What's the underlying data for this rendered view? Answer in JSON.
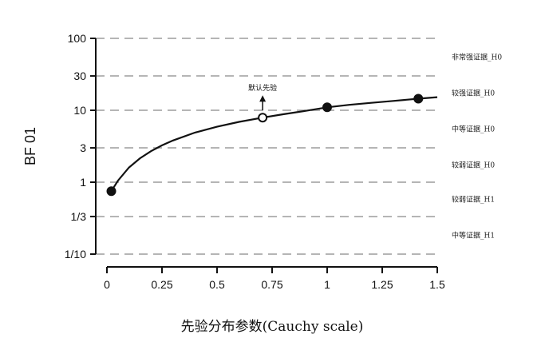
{
  "chart_data": {
    "type": "line",
    "ylabel": "BF 01",
    "xlabel": "先验分布参数(Cauchy scale)",
    "y_scale": "log",
    "xlim": [
      0,
      1.5
    ],
    "ylim": [
      0.1,
      100
    ],
    "x_ticks": [
      {
        "value": 0,
        "label": "0"
      },
      {
        "value": 0.25,
        "label": "0.25"
      },
      {
        "value": 0.5,
        "label": "0.5"
      },
      {
        "value": 0.75,
        "label": "0.75"
      },
      {
        "value": 1,
        "label": "1"
      },
      {
        "value": 1.25,
        "label": "1.25"
      },
      {
        "value": 1.5,
        "label": "1.5"
      }
    ],
    "y_ticks": [
      {
        "value": 0.1,
        "label": "1/10"
      },
      {
        "value": 0.3333,
        "label": "1/3"
      },
      {
        "value": 1,
        "label": "1"
      },
      {
        "value": 3,
        "label": "3"
      },
      {
        "value": 10,
        "label": "10"
      },
      {
        "value": 30,
        "label": "30"
      },
      {
        "value": 100,
        "label": "100"
      }
    ],
    "grid": "horizontal dashed at y ticks",
    "curve": {
      "x": [
        0.02,
        0.05,
        0.1,
        0.15,
        0.2,
        0.25,
        0.3,
        0.4,
        0.5,
        0.6,
        0.707,
        0.8,
        0.9,
        1.0,
        1.1,
        1.2,
        1.3,
        1.414,
        1.5
      ],
      "y": [
        0.75,
        1.05,
        1.6,
        2.15,
        2.7,
        3.25,
        3.8,
        4.9,
        5.9,
        6.9,
        7.9,
        8.8,
        9.8,
        11.0,
        11.9,
        12.7,
        13.5,
        14.5,
        15.2
      ]
    },
    "points": [
      {
        "x": 0.02,
        "y": 0.75,
        "style": "filled"
      },
      {
        "x": 0.707,
        "y": 7.9,
        "style": "open"
      },
      {
        "x": 1.0,
        "y": 11.0,
        "style": "filled"
      },
      {
        "x": 1.414,
        "y": 14.5,
        "style": "filled"
      }
    ],
    "annotation": {
      "text": "默认先验",
      "x": 0.707,
      "y": 7.9
    },
    "evidence_labels": [
      {
        "text": "非常强证据_H0",
        "y_low": 30,
        "y_high": 100
      },
      {
        "text": "较强证据_H0",
        "y_low": 10,
        "y_high": 30
      },
      {
        "text": "中等证据_H0",
        "y_low": 3,
        "y_high": 10
      },
      {
        "text": "较弱证据_H0",
        "y_low": 1,
        "y_high": 3
      },
      {
        "text": "较弱证据_H1",
        "y_low": 0.3333,
        "y_high": 1
      },
      {
        "text": "中等证据_H1",
        "y_low": 0.1,
        "y_high": 0.3333
      }
    ],
    "colors": {
      "line": "#111111",
      "grid": "#b5b5b5",
      "axis": "#111111"
    }
  }
}
